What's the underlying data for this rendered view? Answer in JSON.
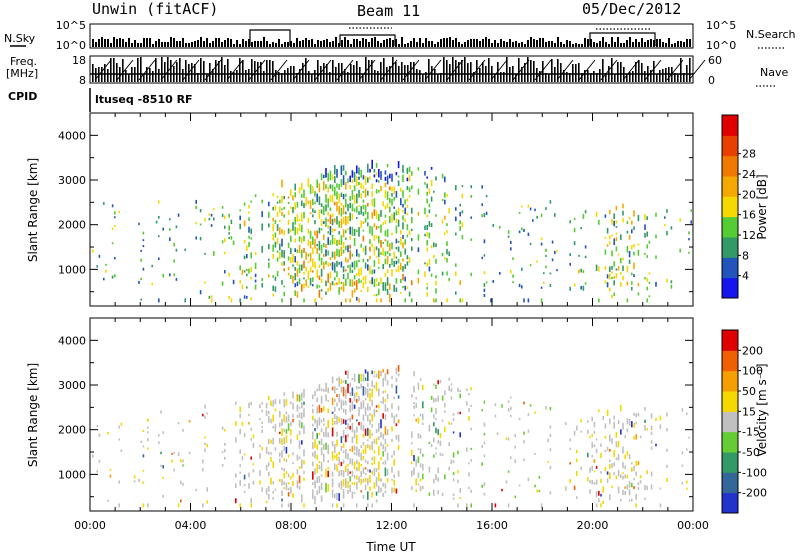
{
  "header": {
    "radar_title": "Unwin (fitACF)",
    "beam_title": "Beam 11",
    "date_title": "05/Dec/2012",
    "cpid_label": "CPID",
    "cpid_text": "ltuseq -8510 RF"
  },
  "strips": {
    "nsky_label": "N.Sky",
    "nsky_ticks": [
      "10^5",
      "10^0"
    ],
    "nsearch_label": "N.Search",
    "nsearch_ticks": [
      "10^5",
      "10^0"
    ],
    "freq_label_line1": "Freq.",
    "freq_label_line2": "[MHz]",
    "freq_ticks": [
      "18",
      "8"
    ],
    "nave_label": "Nave",
    "nave_ticks": [
      "60",
      "0"
    ]
  },
  "chart_data": [
    {
      "type": "heatmap",
      "name": "power",
      "ylabel": "Slant Range [km]",
      "ylim": [
        180,
        4500
      ],
      "yticks": [
        "1000",
        "2000",
        "3000",
        "4000"
      ],
      "xlim": [
        0,
        24
      ],
      "colorbar": {
        "label": "Power [dB]",
        "ticks": [
          "4",
          "8",
          "12",
          "16",
          "20",
          "24",
          "28"
        ],
        "colors": [
          "#1515ee",
          "#2255bb",
          "#339966",
          "#55cc33",
          "#f5d800",
          "#f5a800",
          "#f07a00",
          "#e84000",
          "#e00000"
        ]
      }
    },
    {
      "type": "heatmap",
      "name": "velocity",
      "ylabel": "Slant Range [km]",
      "ylim": [
        180,
        4500
      ],
      "yticks": [
        "1000",
        "2000",
        "3000",
        "4000"
      ],
      "xlim": [
        0,
        24
      ],
      "xlabel": "Time UT",
      "xticks": [
        "00:00",
        "04:00",
        "08:00",
        "12:00",
        "16:00",
        "20:00",
        "00:00"
      ],
      "colorbar": {
        "label": "Velocity [m s⁻¹]",
        "ticks": [
          "200",
          "100",
          "50",
          "15",
          "-15",
          "-50",
          "-100",
          "-200"
        ],
        "colors": [
          "#2233cc",
          "#336699",
          "#339966",
          "#66cc33",
          "#c0c0c0",
          "#f5d800",
          "#f5a000",
          "#f06000",
          "#e00000"
        ]
      }
    }
  ]
}
